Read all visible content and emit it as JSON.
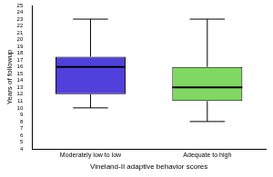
{
  "chart_data": {
    "type": "box",
    "categories": [
      "Moderately low to low",
      "Adequate to high"
    ],
    "colors": [
      "#5040dc",
      "#80d862"
    ],
    "min": [
      10,
      8
    ],
    "q1": [
      12,
      11
    ],
    "median": [
      16,
      13
    ],
    "q3": [
      17.5,
      16
    ],
    "max": [
      23,
      23
    ],
    "x_label": "Vineland-II adaptive behavior scores",
    "y_label": "Years of followup",
    "ylim": [
      4,
      25
    ],
    "yticks": [
      4,
      5,
      6,
      7,
      8,
      9,
      10,
      11,
      12,
      13,
      14,
      15,
      16,
      17,
      18,
      19,
      20,
      21,
      22,
      23,
      24,
      25
    ],
    "grid": false
  }
}
